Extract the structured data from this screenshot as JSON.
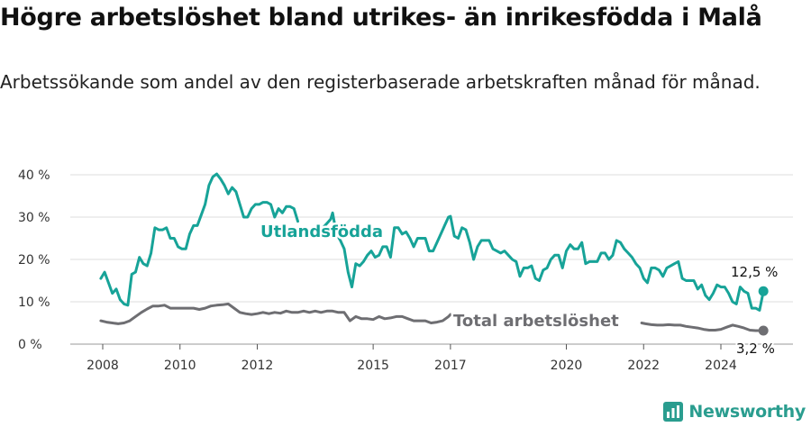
{
  "title": "Högre arbetslöshet bland utrikes- än inrikesfödda i Malå",
  "subtitle": "Arbetssökande som andel av den registerbaserade arbetskraften månad för månad.",
  "brand": "Newsworthy",
  "colors": {
    "foreign": "#17a398",
    "total": "#6e6e72",
    "grid": "#dedede",
    "brand": "#2a9d8f"
  },
  "chart_data": {
    "type": "line",
    "ylim": [
      0,
      40
    ],
    "yticks": [
      0,
      10,
      20,
      30,
      40
    ],
    "ytick_labels": [
      "0 %",
      "10 %",
      "20 %",
      "30 %",
      "40 %"
    ],
    "xticks": [
      2008,
      2010,
      2012,
      2015,
      2017,
      2020,
      2022,
      2024
    ],
    "xtick_labels": [
      "2008",
      "2010",
      "2012",
      "2015",
      "2017",
      "2020",
      "2022",
      "2024"
    ],
    "xlim": [
      2007.8,
      2025.2
    ],
    "grid": true,
    "series": [
      {
        "name": "Utlandsfödda",
        "end_label": "12,5 %",
        "points": [
          [
            2007.95,
            15.5
          ],
          [
            2008.05,
            17
          ],
          [
            2008.15,
            14.5
          ],
          [
            2008.25,
            12
          ],
          [
            2008.35,
            13
          ],
          [
            2008.45,
            10.5
          ],
          [
            2008.55,
            9.5
          ],
          [
            2008.65,
            9.2
          ],
          [
            2008.75,
            16.5
          ],
          [
            2008.85,
            17
          ],
          [
            2008.95,
            20.5
          ],
          [
            2009.05,
            19
          ],
          [
            2009.15,
            18.5
          ],
          [
            2009.25,
            21.5
          ],
          [
            2009.35,
            27.5
          ],
          [
            2009.45,
            27
          ],
          [
            2009.55,
            27
          ],
          [
            2009.65,
            27.5
          ],
          [
            2009.75,
            25
          ],
          [
            2009.85,
            25
          ],
          [
            2009.95,
            23
          ],
          [
            2010.05,
            22.5
          ],
          [
            2010.15,
            22.5
          ],
          [
            2010.25,
            26
          ],
          [
            2010.35,
            28
          ],
          [
            2010.45,
            28
          ],
          [
            2010.55,
            30.5
          ],
          [
            2010.65,
            33
          ],
          [
            2010.75,
            37.5
          ],
          [
            2010.85,
            39.5
          ],
          [
            2010.95,
            40.2
          ],
          [
            2011.05,
            39
          ],
          [
            2011.15,
            37.5
          ],
          [
            2011.25,
            35.5
          ],
          [
            2011.35,
            37
          ],
          [
            2011.45,
            36
          ],
          [
            2011.55,
            33
          ],
          [
            2011.65,
            30
          ],
          [
            2011.75,
            30
          ],
          [
            2011.85,
            32
          ],
          [
            2011.95,
            33
          ],
          [
            2012.05,
            33
          ],
          [
            2012.15,
            33.5
          ],
          [
            2012.25,
            33.5
          ],
          [
            2012.35,
            33
          ],
          [
            2012.45,
            30
          ],
          [
            2012.55,
            32
          ],
          [
            2012.65,
            31
          ],
          [
            2012.75,
            32.5
          ],
          [
            2012.85,
            32.5
          ],
          [
            2012.95,
            32
          ],
          [
            2013.05,
            29
          ]
        ],
        "points_b": [
          [
            2013.7,
            27.5
          ],
          [
            2013.8,
            28.5
          ],
          [
            2013.9,
            29.5
          ],
          [
            2013.95,
            31
          ],
          [
            2014.05,
            26
          ],
          [
            2014.15,
            24.5
          ],
          [
            2014.25,
            22.5
          ],
          [
            2014.35,
            17
          ],
          [
            2014.45,
            13.5
          ],
          [
            2014.55,
            19
          ],
          [
            2014.65,
            18.5
          ],
          [
            2014.75,
            19.5
          ],
          [
            2014.85,
            21
          ],
          [
            2014.95,
            22
          ],
          [
            2015.05,
            20.5
          ],
          [
            2015.15,
            21
          ],
          [
            2015.25,
            23
          ],
          [
            2015.35,
            23
          ],
          [
            2015.45,
            20.5
          ],
          [
            2015.55,
            27.5
          ],
          [
            2015.65,
            27.5
          ],
          [
            2015.75,
            26
          ],
          [
            2015.85,
            26.5
          ],
          [
            2015.95,
            25
          ],
          [
            2016.05,
            23
          ],
          [
            2016.15,
            25
          ],
          [
            2016.25,
            25
          ],
          [
            2016.35,
            25
          ],
          [
            2016.45,
            22
          ],
          [
            2016.55,
            22
          ],
          [
            2016.65,
            24
          ],
          [
            2016.75,
            26
          ],
          [
            2016.85,
            28
          ],
          [
            2016.95,
            30
          ],
          [
            2017.0,
            30.2
          ],
          [
            2017.1,
            25.5
          ],
          [
            2017.2,
            25
          ],
          [
            2017.3,
            27.5
          ],
          [
            2017.4,
            27
          ],
          [
            2017.5,
            24
          ],
          [
            2017.6,
            20
          ],
          [
            2017.7,
            23
          ],
          [
            2017.8,
            24.5
          ],
          [
            2017.9,
            24.5
          ],
          [
            2018.0,
            24.5
          ],
          [
            2018.1,
            22.5
          ],
          [
            2018.2,
            22
          ],
          [
            2018.3,
            21.5
          ],
          [
            2018.4,
            22
          ],
          [
            2018.5,
            21
          ],
          [
            2018.6,
            20
          ],
          [
            2018.7,
            19.5
          ],
          [
            2018.8,
            16
          ],
          [
            2018.9,
            18
          ],
          [
            2019.0,
            18
          ],
          [
            2019.1,
            18.5
          ],
          [
            2019.2,
            15.5
          ],
          [
            2019.3,
            15
          ],
          [
            2019.4,
            17.5
          ],
          [
            2019.5,
            18
          ],
          [
            2019.6,
            20
          ],
          [
            2019.7,
            21
          ],
          [
            2019.8,
            21
          ],
          [
            2019.9,
            18
          ],
          [
            2020.0,
            22
          ],
          [
            2020.1,
            23.5
          ],
          [
            2020.2,
            22.5
          ],
          [
            2020.3,
            22.5
          ],
          [
            2020.4,
            24
          ],
          [
            2020.5,
            19
          ],
          [
            2020.6,
            19.5
          ],
          [
            2020.7,
            19.5
          ],
          [
            2020.8,
            19.5
          ],
          [
            2020.9,
            21.5
          ],
          [
            2021.0,
            21.5
          ],
          [
            2021.1,
            20
          ],
          [
            2021.2,
            21
          ],
          [
            2021.3,
            24.5
          ],
          [
            2021.4,
            24
          ],
          [
            2021.5,
            22.5
          ],
          [
            2021.6,
            21.5
          ],
          [
            2021.7,
            20.5
          ],
          [
            2021.8,
            19
          ],
          [
            2021.9,
            18
          ],
          [
            2022.0,
            15.5
          ],
          [
            2022.1,
            14.5
          ],
          [
            2022.2,
            18
          ],
          [
            2022.3,
            18
          ],
          [
            2022.4,
            17.5
          ],
          [
            2022.5,
            16
          ],
          [
            2022.6,
            18
          ],
          [
            2022.7,
            18.5
          ],
          [
            2022.8,
            19
          ],
          [
            2022.9,
            19.5
          ],
          [
            2023.0,
            15.5
          ],
          [
            2023.1,
            15
          ],
          [
            2023.2,
            15
          ],
          [
            2023.3,
            15
          ],
          [
            2023.4,
            13
          ],
          [
            2023.5,
            14
          ],
          [
            2023.6,
            11.5
          ],
          [
            2023.7,
            10.5
          ],
          [
            2023.8,
            12
          ],
          [
            2023.9,
            14
          ],
          [
            2024.0,
            13.5
          ],
          [
            2024.1,
            13.5
          ],
          [
            2024.2,
            12
          ],
          [
            2024.3,
            10
          ],
          [
            2024.4,
            9.5
          ],
          [
            2024.5,
            13.5
          ],
          [
            2024.6,
            12.5
          ],
          [
            2024.7,
            12
          ],
          [
            2024.8,
            8.5
          ],
          [
            2024.9,
            8.5
          ],
          [
            2025.0,
            8
          ],
          [
            2025.1,
            12.5
          ]
        ]
      },
      {
        "name": "Total arbetslöshet",
        "end_label": "3,2 %",
        "points": [
          [
            2007.95,
            5.5
          ],
          [
            2008.1,
            5.2
          ],
          [
            2008.25,
            5
          ],
          [
            2008.4,
            4.8
          ],
          [
            2008.55,
            5
          ],
          [
            2008.7,
            5.5
          ],
          [
            2008.85,
            6.5
          ],
          [
            2009.0,
            7.5
          ],
          [
            2009.15,
            8.3
          ],
          [
            2009.3,
            9
          ],
          [
            2009.45,
            9
          ],
          [
            2009.6,
            9.2
          ],
          [
            2009.75,
            8.5
          ],
          [
            2009.9,
            8.5
          ],
          [
            2010.05,
            8.5
          ],
          [
            2010.2,
            8.5
          ],
          [
            2010.35,
            8.5
          ],
          [
            2010.5,
            8.2
          ],
          [
            2010.65,
            8.5
          ],
          [
            2010.8,
            9
          ],
          [
            2010.95,
            9.2
          ],
          [
            2011.1,
            9.3
          ],
          [
            2011.25,
            9.5
          ],
          [
            2011.4,
            8.5
          ],
          [
            2011.55,
            7.5
          ],
          [
            2011.7,
            7.2
          ],
          [
            2011.85,
            7
          ],
          [
            2012.0,
            7.2
          ],
          [
            2012.15,
            7.5
          ],
          [
            2012.3,
            7.2
          ],
          [
            2012.45,
            7.5
          ],
          [
            2012.6,
            7.3
          ],
          [
            2012.75,
            7.8
          ],
          [
            2012.9,
            7.5
          ],
          [
            2013.05,
            7.5
          ],
          [
            2013.2,
            7.8
          ],
          [
            2013.35,
            7.5
          ],
          [
            2013.5,
            7.8
          ],
          [
            2013.65,
            7.5
          ],
          [
            2013.8,
            7.8
          ],
          [
            2013.95,
            7.8
          ],
          [
            2014.1,
            7.5
          ],
          [
            2014.25,
            7.5
          ],
          [
            2014.4,
            5.5
          ],
          [
            2014.55,
            6.5
          ],
          [
            2014.7,
            6
          ],
          [
            2014.85,
            6
          ],
          [
            2015.0,
            5.8
          ],
          [
            2015.15,
            6.5
          ],
          [
            2015.3,
            6
          ],
          [
            2015.45,
            6.2
          ],
          [
            2015.6,
            6.5
          ],
          [
            2015.75,
            6.5
          ],
          [
            2015.9,
            6
          ],
          [
            2016.05,
            5.5
          ],
          [
            2016.2,
            5.5
          ],
          [
            2016.35,
            5.5
          ],
          [
            2016.5,
            5
          ],
          [
            2016.65,
            5.2
          ],
          [
            2016.8,
            5.5
          ],
          [
            2016.95,
            6.5
          ],
          [
            2017.0,
            7
          ]
        ],
        "points_b": [
          [
            2021.95,
            5
          ],
          [
            2022.05,
            4.8
          ],
          [
            2022.2,
            4.6
          ],
          [
            2022.35,
            4.5
          ],
          [
            2022.5,
            4.5
          ],
          [
            2022.65,
            4.6
          ],
          [
            2022.8,
            4.5
          ],
          [
            2022.95,
            4.5
          ],
          [
            2023.1,
            4.2
          ],
          [
            2023.25,
            4
          ],
          [
            2023.4,
            3.8
          ],
          [
            2023.55,
            3.5
          ],
          [
            2023.7,
            3.3
          ],
          [
            2023.85,
            3.3
          ],
          [
            2024.0,
            3.5
          ],
          [
            2024.15,
            4
          ],
          [
            2024.3,
            4.5
          ],
          [
            2024.45,
            4.2
          ],
          [
            2024.6,
            3.8
          ],
          [
            2024.75,
            3.3
          ],
          [
            2024.9,
            3.2
          ],
          [
            2025.1,
            3.2
          ]
        ]
      }
    ]
  }
}
